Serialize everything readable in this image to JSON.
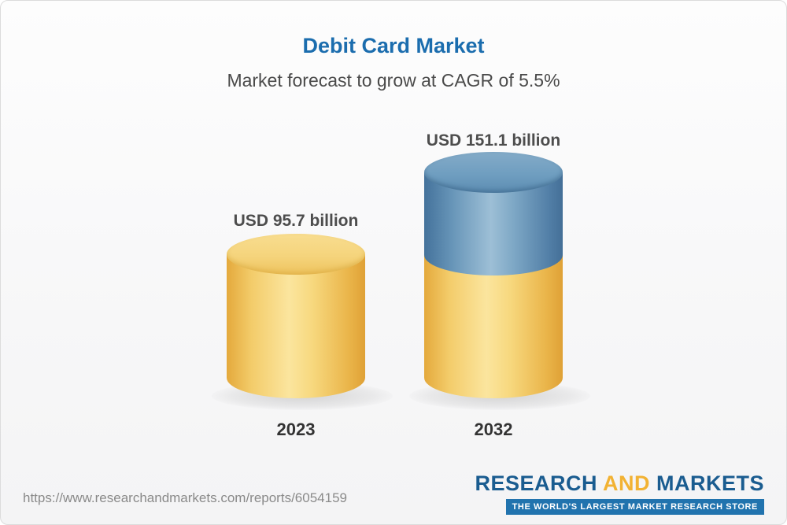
{
  "header": {
    "title": "Debit Card Market",
    "subtitle": "Market forecast to grow at CAGR of 5.5%"
  },
  "chart_data": {
    "type": "bar",
    "variant": "3d-cylinder",
    "title": "Debit Card Market",
    "subtitle": "Market forecast to grow at CAGR of 5.5%",
    "cagr_percent": 5.5,
    "unit": "USD billion",
    "categories": [
      "2023",
      "2032"
    ],
    "values": [
      95.7,
      151.1
    ],
    "value_labels": [
      "USD 95.7 billion",
      "USD 151.1 billion"
    ],
    "legend_position": "none",
    "grid": false,
    "colors": {
      "base_segment": "#F2C657",
      "growth_segment": "#5A8BB5",
      "title_text": "#1B6DAE",
      "label_text": "#4D4D4D"
    },
    "notes": "2032 bar is stacked visually: yellow base equals 2023 value, blue top segment represents forecast growth."
  },
  "footer": {
    "url": "https://www.researchandmarkets.com/reports/6054159",
    "logo": {
      "word1": "RESEARCH",
      "word2": "AND",
      "word3": "MARKETS",
      "tagline": "THE WORLD'S LARGEST MARKET RESEARCH STORE"
    }
  }
}
